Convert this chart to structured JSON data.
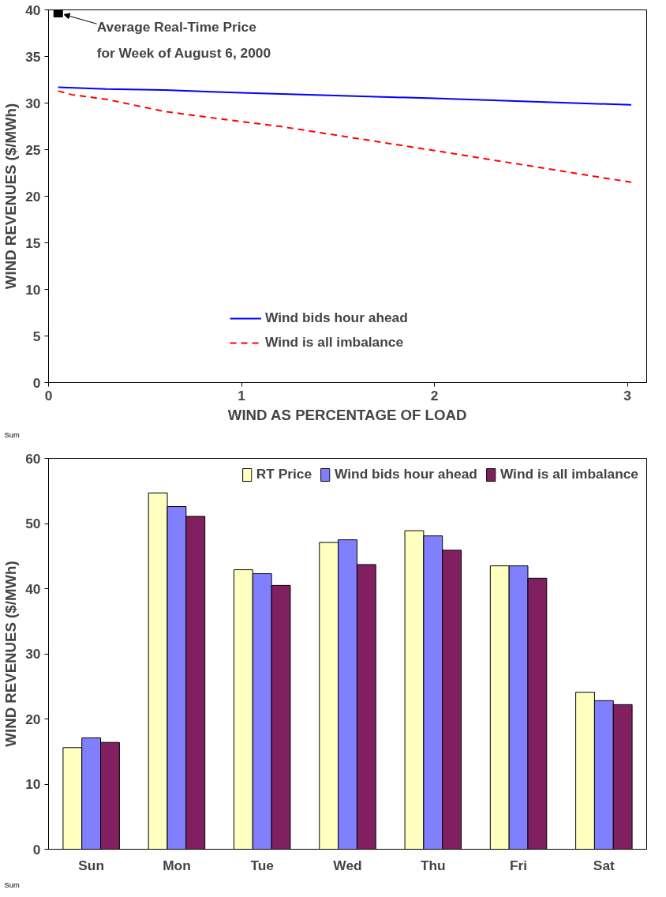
{
  "chart_data": [
    {
      "type": "line",
      "xlabel": "WIND AS PERCENTAGE OF LOAD",
      "ylabel": "WIND REVENUES ($/MWh)",
      "xlim": [
        0,
        3.1
      ],
      "ylim": [
        0,
        40
      ],
      "xticks": [
        0,
        1,
        2,
        3
      ],
      "yticks": [
        0,
        5,
        10,
        15,
        20,
        25,
        30,
        35,
        40
      ],
      "grid": false,
      "legend": "bottom",
      "series": [
        {
          "name": "Wind bids hour ahead",
          "color": "#0000ff",
          "line_style": "solid",
          "x": [
            0.05,
            0.3,
            0.6,
            1,
            2,
            3.02
          ],
          "values": [
            31.7,
            31.5,
            31.4,
            31.1,
            30.5,
            29.8
          ]
        },
        {
          "name": "Wind is all imbalance",
          "color": "#ff0000",
          "line_style": "dashed",
          "x": [
            0.05,
            0.12,
            0.3,
            0.6,
            1,
            1.2,
            2,
            3.02
          ],
          "values": [
            31.3,
            30.9,
            30.4,
            29.1,
            28.0,
            27.5,
            24.9,
            21.5
          ]
        },
        {
          "type": "scatter",
          "marker": "square",
          "color": "#000000",
          "x": [
            0.05
          ],
          "values": [
            39.7
          ]
        }
      ],
      "annotations": [
        {
          "text": "Average Real-Time Price\nfor Week of August 6, 2000",
          "x": 0.05,
          "y": 39.7
        },
        "Sum"
      ]
    },
    {
      "type": "bar",
      "ylabel": "WIND REVENUES ($/MWh)",
      "ylim": [
        0,
        60
      ],
      "yticks": [
        0,
        10,
        20,
        30,
        40,
        50,
        60
      ],
      "grid": false,
      "legend": "top right",
      "categories": [
        "Sun",
        "Mon",
        "Tue",
        "Wed",
        "Thu",
        "Fri",
        "Sat"
      ],
      "series": [
        {
          "name": "RT Price",
          "color": "#ffffc0",
          "values": [
            15.6,
            54.7,
            42.9,
            47.1,
            48.9,
            43.5,
            24.1
          ]
        },
        {
          "name": "Wind bids hour ahead",
          "color": "#8080ff",
          "values": [
            17.1,
            52.6,
            42.3,
            47.5,
            48.1,
            43.5,
            22.8
          ]
        },
        {
          "name": "Wind is all imbalance",
          "color": "#802060",
          "values": [
            16.4,
            51.1,
            40.5,
            43.7,
            45.9,
            41.6,
            22.2
          ]
        }
      ],
      "annotations": [
        "Sum"
      ]
    }
  ]
}
